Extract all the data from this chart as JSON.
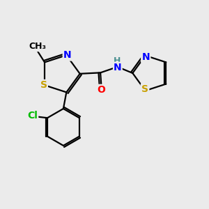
{
  "bg_color": "#ebebeb",
  "bond_color": "#000000",
  "bond_width": 1.6,
  "atom_colors": {
    "S": "#c8a000",
    "N": "#0000ff",
    "O": "#ff0000",
    "Cl": "#00bb00",
    "C": "#000000",
    "H": "#4a9090"
  },
  "font_size_atoms": 10,
  "font_size_methyl": 9,
  "figsize": [
    3.0,
    3.0
  ],
  "dpi": 100,
  "xlim": [
    0,
    10
  ],
  "ylim": [
    0,
    10
  ]
}
